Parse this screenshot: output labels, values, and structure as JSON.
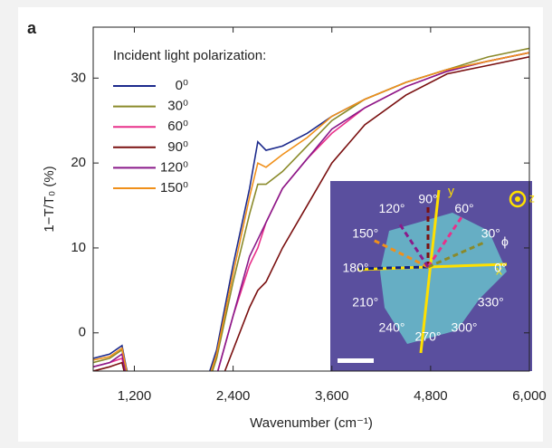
{
  "panel_label": "a",
  "chart_data": {
    "type": "line",
    "ylabel": "1−T/T₀ (%)",
    "xlabel": "Wavenumber (cm⁻¹)",
    "legend_title": "Incident light polarization:",
    "x": [
      700,
      900,
      1050,
      1100,
      1200,
      2000,
      2200,
      2400,
      2600,
      2700,
      2800,
      3000,
      3300,
      3600,
      4000,
      4500,
      5000,
      5500,
      6000
    ],
    "series": [
      {
        "name": "0⁰",
        "color": "#1c2a8c",
        "values": [
          -3,
          -2.5,
          -1.5,
          -4,
          -8,
          -8,
          -2,
          8,
          17,
          22.5,
          21.5,
          22,
          23.5,
          25.5,
          27.5,
          29.5,
          31,
          32,
          33
        ]
      },
      {
        "name": "30⁰",
        "color": "#8a8a2a",
        "values": [
          -3.5,
          -3,
          -2,
          -4.5,
          -9,
          -9,
          -3,
          6,
          14,
          17.5,
          17.5,
          19,
          22,
          25,
          27.5,
          29.5,
          31,
          32.5,
          33.5
        ]
      },
      {
        "name": "60⁰",
        "color": "#e8308a",
        "values": [
          -4,
          -3.5,
          -3,
          -5,
          -10,
          -10,
          -5,
          2,
          8,
          10,
          13,
          17,
          20.5,
          23.5,
          26.5,
          29,
          30.8,
          32,
          33
        ]
      },
      {
        "name": "90⁰",
        "color": "#7a1010",
        "values": [
          -4.5,
          -4,
          -3.5,
          -5.5,
          -11,
          -12,
          -7,
          -2,
          3,
          5,
          6,
          10,
          15,
          20,
          24.5,
          28,
          30.5,
          31.5,
          32.5
        ]
      },
      {
        "name": "120⁰",
        "color": "#8a1a8a",
        "values": [
          -4,
          -3.5,
          -2.5,
          -5,
          -10,
          -10,
          -5,
          2,
          9,
          11,
          13,
          17,
          20.5,
          24,
          26.5,
          29,
          30.8,
          32,
          33
        ]
      },
      {
        "name": "150⁰",
        "color": "#f0901a",
        "values": [
          -3.2,
          -2.8,
          -1.8,
          -4.2,
          -8.5,
          -8.5,
          -2.5,
          7,
          16,
          20,
          19.5,
          21,
          23,
          25.5,
          27.5,
          29.5,
          31,
          32,
          33
        ]
      }
    ],
    "xlim": [
      700,
      6000
    ],
    "xticks": [
      {
        "value": 1200,
        "label": "1,200"
      },
      {
        "value": 2400,
        "label": "2,400"
      },
      {
        "value": 3600,
        "label": "3,600"
      },
      {
        "value": 4800,
        "label": "4,800"
      },
      {
        "value": 6000,
        "label": "6,000"
      }
    ],
    "ylim": [
      -4.5,
      36
    ],
    "yticks": [
      0,
      10,
      20,
      30
    ],
    "legend": "upper-left"
  },
  "inset": {
    "angle_labels": [
      "0°",
      "30°",
      "60°",
      "90°",
      "120°",
      "150°",
      "180°",
      "210°",
      "240°",
      "270°",
      "300°",
      "330°"
    ],
    "axis_labels": [
      "x",
      "y",
      "z"
    ],
    "phi": "ϕ"
  }
}
